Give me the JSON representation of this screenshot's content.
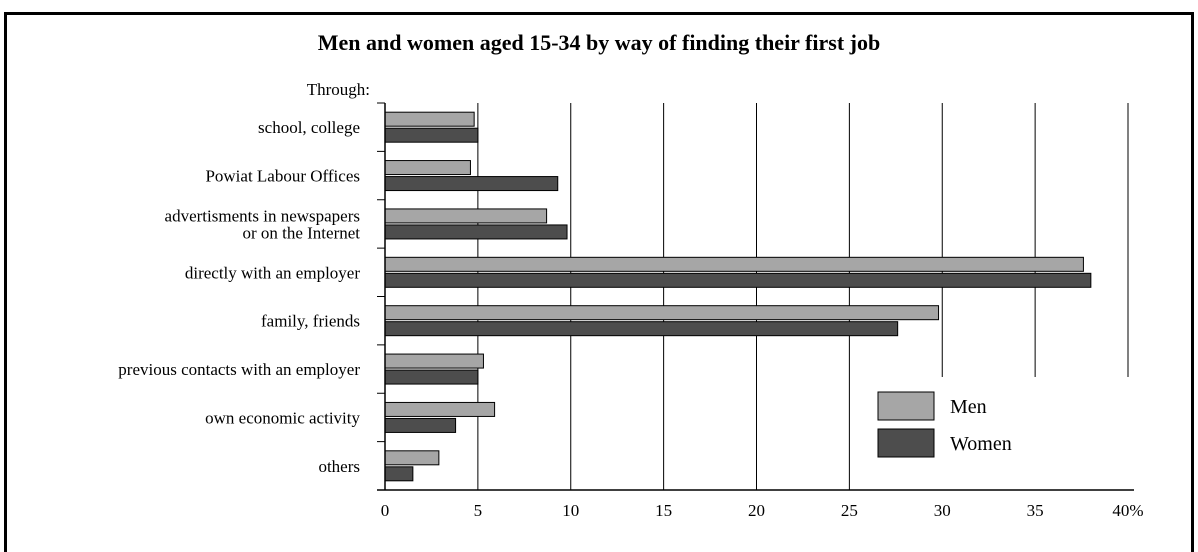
{
  "chart_data": {
    "type": "bar",
    "orientation": "horizontal",
    "title": "Men and women aged 15-34 by way of finding their first job",
    "category_prefix": "Through:",
    "categories": [
      [
        "school, college"
      ],
      [
        "Powiat Labour Offices"
      ],
      [
        "advertisments in newspapers",
        "or on the Internet"
      ],
      [
        "directly with an employer"
      ],
      [
        "family, friends"
      ],
      [
        "previous contacts with an employer"
      ],
      [
        "own economic activity"
      ],
      [
        "others"
      ]
    ],
    "series": [
      {
        "name": "Men",
        "color": "#a6a6a6",
        "values": [
          4.8,
          4.6,
          8.7,
          37.6,
          29.8,
          5.3,
          5.9,
          2.9
        ]
      },
      {
        "name": "Women",
        "color": "#4d4d4d",
        "values": [
          5.0,
          9.3,
          9.8,
          38.0,
          27.6,
          5.0,
          3.8,
          1.5
        ]
      }
    ],
    "xlim": [
      0,
      40
    ],
    "x_ticks": [
      "0",
      "5",
      "10",
      "15",
      "20",
      "25",
      "30",
      "35",
      "40%"
    ],
    "grid": "vertical",
    "legend": "bottom-right"
  }
}
